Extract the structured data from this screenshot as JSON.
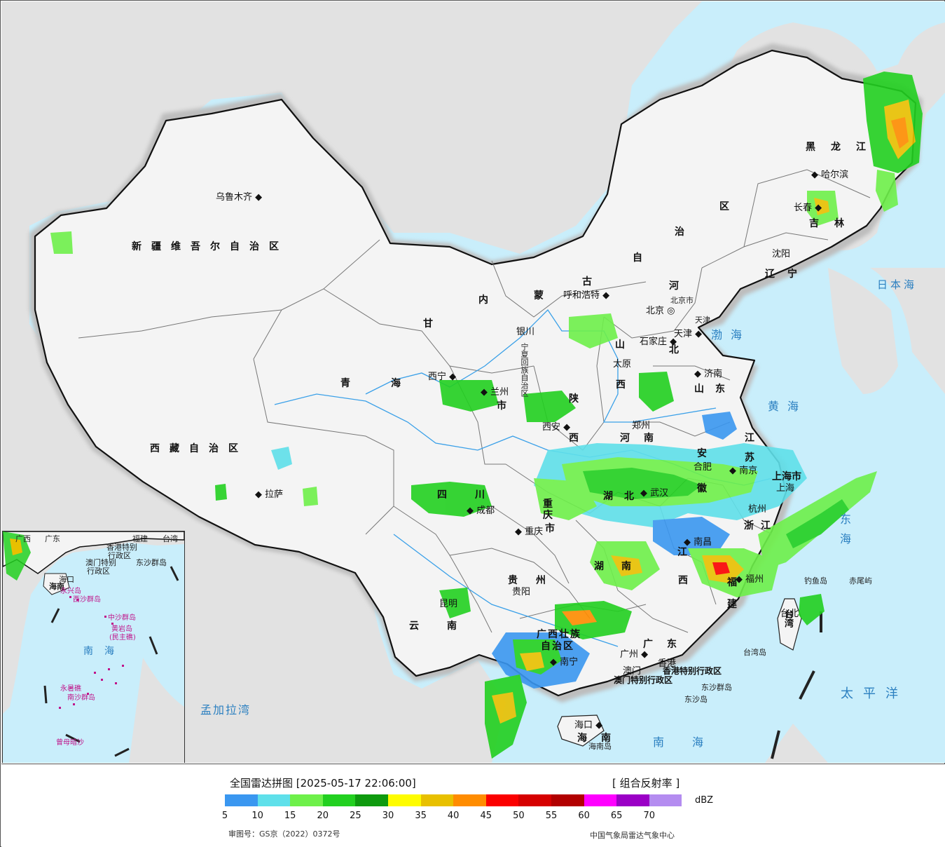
{
  "legend": {
    "title": "全国雷达拼图 [2025-05-17 22:06:00]",
    "product": "[ 组合反射率 ]",
    "unit": "dBZ",
    "ticks": [
      "5",
      "10",
      "15",
      "20",
      "25",
      "30",
      "35",
      "40",
      "45",
      "50",
      "55",
      "60",
      "65",
      "70"
    ],
    "colors": [
      "#3a97f0",
      "#5fe0ea",
      "#6ef04a",
      "#22d020",
      "#0e9a0e",
      "#fefc00",
      "#e8c000",
      "#ff8c00",
      "#fb0000",
      "#d60000",
      "#b20000",
      "#ff00ff",
      "#9b00c6",
      "#b48cf0"
    ],
    "approval": "审图号：GS京（2022）0372号",
    "source": "中国气象局雷达气象中心"
  },
  "map": {
    "provinces": {
      "xinjiang": "新疆维吾尔自治区",
      "xizang": "西藏自治区",
      "qinghai_1": "青",
      "qinghai_2": "海",
      "gansu": "甘",
      "neimenggu_1": "内",
      "neimenggu_2": "蒙",
      "neimenggu_3": "古",
      "neimenggu_4": "自",
      "neimenggu_5": "治",
      "neimenggu_6": "区",
      "heilongjiang": "黑龙江",
      "jilin": "吉林",
      "liaoning": "辽宁",
      "hebei_1": "河",
      "hebei_2": "北",
      "shanxi_1": "山",
      "shanxi_2": "西",
      "shaanxi_1": "陕",
      "shaanxi_2": "西",
      "shandong": "山东",
      "henan": "河南",
      "jiangsu_1": "江",
      "jiangsu_2": "苏",
      "anhui_1": "安",
      "anhui_2": "徽",
      "hubei": "湖北",
      "hunan_1": "湖",
      "hunan_2": "南",
      "jiangxi_1": "江",
      "jiangxi_2": "西",
      "zhejiang": "浙江",
      "fujian_1": "福",
      "fujian_2": "建",
      "sichuan": "四川",
      "chongqing_1": "重",
      "chongqing_2": "庆",
      "chongqing_3": "市",
      "guizhou": "贵州",
      "yunnan": "云南",
      "guangxi_1": "广西壮族",
      "guangxi_2": "自治区",
      "guangdong": "广东",
      "hainan": "海南",
      "taiwan": "台湾",
      "shanghai": "上海市",
      "ningxia": "宁夏回族自治区",
      "lanzhou_city": "市",
      "xianggang": "香港特别行政区",
      "aomen": "澳门特别行政区"
    },
    "cities": {
      "urumqi": "乌鲁木齐",
      "lhasa": "拉萨",
      "xining": "西宁",
      "lanzhou": "兰州",
      "yinchuan": "银川",
      "huhehaote": "呼和浩特",
      "beijing": "北京",
      "beijing_shi": "北京市",
      "tianjin": "天津",
      "tianjin_shi": "天津",
      "shijiazhuang": "石家庄",
      "taiyuan": "太原",
      "jinan": "济南",
      "zhengzhou": "郑州",
      "xian": "西安",
      "harbin": "哈尔滨",
      "changchun": "长春",
      "shenyang": "沈阳",
      "hefei": "合肥",
      "nanjing": "南京",
      "shanghai": "上海",
      "hangzhou": "杭州",
      "wuhan": "武汉",
      "nanchang": "南昌",
      "fuzhou": "福州",
      "taibei": "台北",
      "chengdu": "成都",
      "chongqing": "重庆",
      "guiyang": "贵阳",
      "kunming": "昆明",
      "nanning": "南宁",
      "guangzhou": "广州",
      "aomen": "澳门",
      "xianggang": "香港",
      "haikou": "海口"
    },
    "seas": {
      "bohai": "渤海",
      "huanghai": "黄海",
      "donghai": "东海",
      "nanhai": "南海",
      "taipingyang": "太平洋",
      "ribenhai": "日本海",
      "mengjialawan": "孟加拉湾"
    },
    "islands": {
      "diaoyudao": "钓鱼岛",
      "chiweiyu": "赤尾屿",
      "taiwandao": "台湾岛",
      "dongshaqundao": "东沙群岛",
      "dongshadao": "东沙岛",
      "hainandao": "海南岛"
    }
  },
  "inset": {
    "labels": {
      "guangdong": "广东",
      "guangxi": "广西",
      "fujian": "福建",
      "taiwan": "台湾",
      "xianggang_1": "香港特别",
      "xianggang_2": "行政区",
      "aomen_1": "澳门特别",
      "aomen_2": "行政区",
      "dongsha": "东沙群岛",
      "haikou": "海口",
      "hainan": "海南",
      "xisha": "西沙群岛",
      "yongxing": "永兴岛",
      "zhongsha": "中沙群岛",
      "huangyan_1": "黄岩岛",
      "huangyan_2": "(民主礁)",
      "nanhai": "南海",
      "yongshu": "永暑礁",
      "nansha": "南沙群岛",
      "zengmu": "曾母暗沙"
    }
  }
}
